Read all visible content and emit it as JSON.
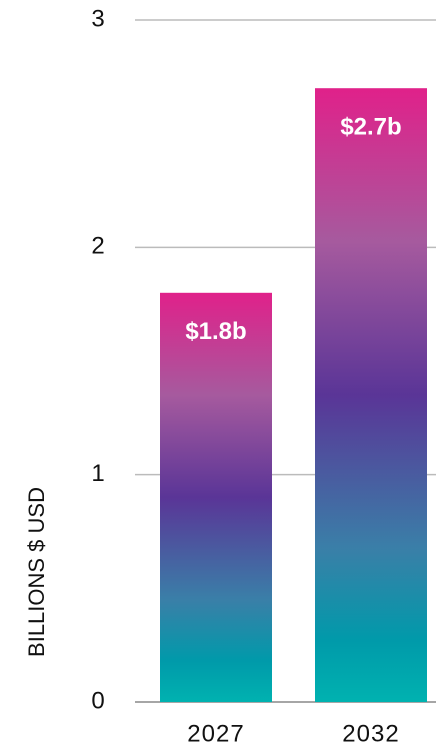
{
  "chart_data": {
    "type": "bar",
    "y_label": "BILLIONS $ USD",
    "categories": [
      "2027",
      "2032"
    ],
    "values": [
      1.8,
      2.7
    ],
    "value_labels": [
      "$1.8b",
      "$2.7b"
    ],
    "ylim": [
      0,
      3
    ],
    "yticks": [
      0,
      1,
      2,
      3
    ],
    "grid": true
  }
}
